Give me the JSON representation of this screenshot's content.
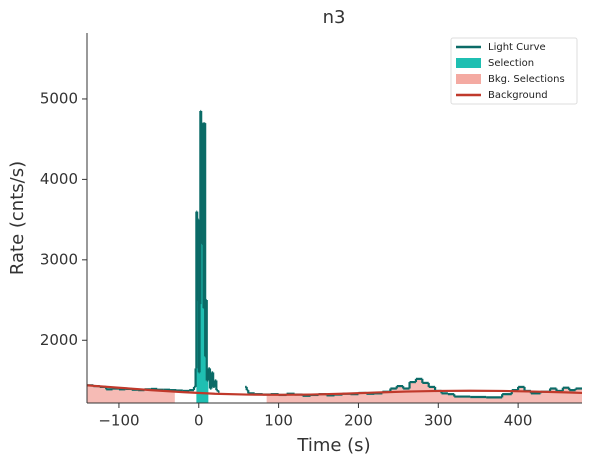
{
  "chart_data": {
    "type": "lightcurve",
    "title": "n3",
    "xlabel": "Time (s)",
    "ylabel": "Rate (cnts/s)",
    "xlim": [
      -140,
      480
    ],
    "ylim": [
      1220,
      5820
    ],
    "xticks": [
      {
        "value": -100,
        "label": "−100"
      },
      0,
      100,
      200,
      300,
      400
    ],
    "yticks": [
      2000,
      3000,
      4000,
      5000
    ],
    "legend": "upper right",
    "light_curve": {
      "name": "Light Curve",
      "color": "#0b6b67",
      "x": [
        -140,
        -132,
        -124,
        -116,
        -108,
        -100,
        -92,
        -84,
        -76,
        -68,
        -60,
        -52,
        -44,
        -36,
        -28,
        -20,
        -12,
        -6,
        -4,
        -3,
        -2,
        -1,
        0,
        1,
        2,
        3,
        4,
        5,
        6,
        7,
        8,
        9,
        10,
        12,
        14,
        16,
        18,
        20,
        22,
        24,
        26,
        58,
        60,
        62,
        70,
        80,
        90,
        100,
        110,
        120,
        130,
        140,
        150,
        160,
        170,
        180,
        190,
        200,
        210,
        220,
        230,
        240,
        248,
        256,
        264,
        272,
        280,
        288,
        296,
        304,
        312,
        320,
        340,
        360,
        380,
        392,
        400,
        408,
        416,
        428,
        440,
        448,
        456,
        464,
        472
      ],
      "values": [
        1440,
        1430,
        1420,
        1390,
        1400,
        1390,
        1395,
        1385,
        1380,
        1390,
        1395,
        1385,
        1385,
        1380,
        1375,
        1370,
        1380,
        1420,
        1650,
        3600,
        2500,
        3500,
        1600,
        2450,
        4850,
        4000,
        3200,
        4700,
        2400,
        4700,
        1800,
        2500,
        1500,
        1650,
        1400,
        1600,
        1420,
        1500,
        1380,
        1360,
        null,
        1420,
        1380,
        1340,
        1330,
        1325,
        1330,
        1320,
        1335,
        1325,
        1310,
        1320,
        1330,
        1315,
        1325,
        1335,
        1330,
        1345,
        1335,
        1340,
        1360,
        1400,
        1430,
        1400,
        1480,
        1520,
        1470,
        1420,
        1370,
        1340,
        1330,
        1300,
        1295,
        1290,
        1330,
        1380,
        1420,
        1370,
        1340,
        1360,
        1400,
        1370,
        1410,
        1380,
        1400
      ]
    },
    "selection": {
      "name": "Selection",
      "color": "#1fbfb2",
      "ranges": [
        [
          -3,
          12
        ]
      ]
    },
    "bkg_selections": {
      "name": "Bkg. Selections",
      "color": "#f4aaa2",
      "ranges": [
        [
          -140,
          -30
        ],
        [
          85,
          480
        ]
      ]
    },
    "background": {
      "name": "Background",
      "color": "#c0392b",
      "x": [
        -140,
        -100,
        -60,
        -20,
        20,
        60,
        100,
        140,
        180,
        220,
        260,
        300,
        340,
        380,
        420,
        460,
        480
      ],
      "values": [
        1440,
        1410,
        1380,
        1355,
        1335,
        1325,
        1322,
        1325,
        1335,
        1350,
        1362,
        1370,
        1372,
        1370,
        1362,
        1352,
        1345
      ]
    }
  }
}
